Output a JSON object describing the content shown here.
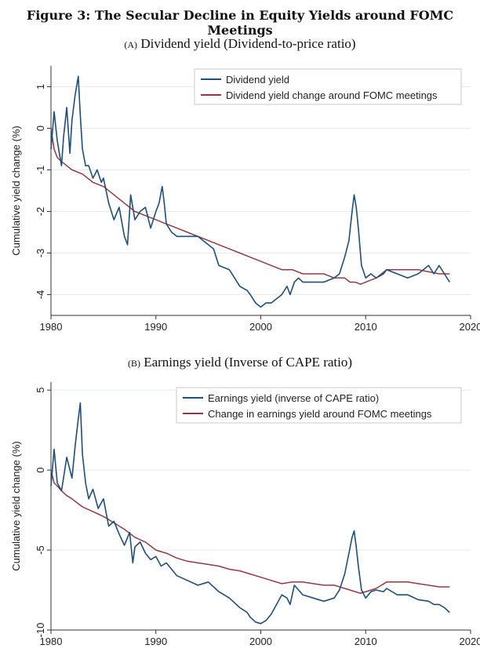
{
  "figure_title": "Figure 3: The Secular Decline in Equity Yields around FOMC Meetings",
  "colors": {
    "blue": "#1f4e79",
    "red": "#943a43",
    "grid": "#e6eaed",
    "axis": "#333333"
  },
  "chart_data": [
    {
      "type": "line",
      "panel_tag": "(A)",
      "title": "Dividend yield (Dividend-to-price ratio)",
      "xlabel": "",
      "ylabel": "Cumulative yield change (%)",
      "xlim": [
        1980,
        2020
      ],
      "ylim": [
        -4.5,
        1.5
      ],
      "xticks": [
        1980,
        1990,
        2000,
        2010,
        2020
      ],
      "yticks": [
        1,
        0,
        -1,
        -2,
        -3,
        -4
      ],
      "legend_position": "top-right",
      "series": [
        {
          "name": "Dividend yield",
          "color": "blue",
          "x": [
            1980.0,
            1980.3,
            1980.6,
            1981.0,
            1981.2,
            1981.5,
            1981.8,
            1982.0,
            1982.3,
            1982.6,
            1982.8,
            1983.0,
            1983.3,
            1983.6,
            1984.0,
            1984.4,
            1984.8,
            1985.0,
            1985.5,
            1986.0,
            1986.5,
            1987.0,
            1987.3,
            1987.6,
            1987.8,
            1988.0,
            1988.5,
            1989.0,
            1989.5,
            1990.0,
            1990.3,
            1990.6,
            1990.8,
            1991.0,
            1991.5,
            1992.0,
            1993.0,
            1994.0,
            1995.0,
            1995.5,
            1996.0,
            1997.0,
            1998.0,
            1998.7,
            1999.0,
            1999.5,
            2000.0,
            2000.5,
            2001.0,
            2001.5,
            2002.0,
            2002.5,
            2002.8,
            2003.2,
            2003.6,
            2004.0,
            2005.0,
            2006.0,
            2007.0,
            2007.5,
            2008.0,
            2008.4,
            2008.7,
            2008.9,
            2009.1,
            2009.3,
            2009.6,
            2010.0,
            2010.5,
            2011.0,
            2011.7,
            2012.0,
            2013.0,
            2014.0,
            2015.0,
            2016.0,
            2016.5,
            2017.0,
            2017.5,
            2018.0
          ],
          "values": [
            -0.5,
            0.4,
            -0.3,
            -0.9,
            -0.2,
            0.5,
            -0.6,
            0.2,
            0.8,
            1.25,
            0.3,
            -0.5,
            -0.9,
            -0.9,
            -1.2,
            -1.0,
            -1.3,
            -1.2,
            -1.8,
            -2.2,
            -1.9,
            -2.6,
            -2.8,
            -1.6,
            -1.9,
            -2.2,
            -2.0,
            -1.9,
            -2.4,
            -2.0,
            -1.8,
            -1.4,
            -1.8,
            -2.3,
            -2.5,
            -2.6,
            -2.6,
            -2.6,
            -2.8,
            -2.9,
            -3.3,
            -3.4,
            -3.8,
            -3.9,
            -4.0,
            -4.2,
            -4.3,
            -4.2,
            -4.2,
            -4.1,
            -4.0,
            -3.8,
            -4.0,
            -3.7,
            -3.6,
            -3.7,
            -3.7,
            -3.7,
            -3.6,
            -3.5,
            -3.1,
            -2.7,
            -2.0,
            -1.6,
            -1.9,
            -2.4,
            -3.3,
            -3.6,
            -3.5,
            -3.6,
            -3.5,
            -3.4,
            -3.5,
            -3.6,
            -3.5,
            -3.3,
            -3.5,
            -3.3,
            -3.5,
            -3.7
          ]
        },
        {
          "name": "Dividend yield change around FOMC meetings",
          "color": "red",
          "x": [
            1980.0,
            1980.3,
            1980.6,
            1981.0,
            1981.5,
            1982.0,
            1983.0,
            1984.0,
            1985.0,
            1986.0,
            1987.0,
            1988.0,
            1989.0,
            1990.0,
            1991.0,
            1992.0,
            1993.0,
            1994.0,
            1995.0,
            1996.0,
            1997.0,
            1998.0,
            1999.0,
            2000.0,
            2001.0,
            2002.0,
            2003.0,
            2004.0,
            2005.0,
            2006.0,
            2007.0,
            2008.0,
            2008.5,
            2009.0,
            2009.5,
            2010.0,
            2011.0,
            2011.5,
            2012.0,
            2013.0,
            2014.0,
            2015.0,
            2016.0,
            2017.0,
            2018.0
          ],
          "values": [
            0.0,
            -0.5,
            -0.7,
            -0.8,
            -0.9,
            -1.0,
            -1.1,
            -1.3,
            -1.4,
            -1.6,
            -1.8,
            -2.0,
            -2.1,
            -2.2,
            -2.3,
            -2.4,
            -2.5,
            -2.6,
            -2.7,
            -2.8,
            -2.9,
            -3.0,
            -3.1,
            -3.2,
            -3.3,
            -3.4,
            -3.4,
            -3.5,
            -3.5,
            -3.5,
            -3.6,
            -3.6,
            -3.7,
            -3.7,
            -3.75,
            -3.7,
            -3.6,
            -3.5,
            -3.4,
            -3.4,
            -3.4,
            -3.4,
            -3.45,
            -3.5,
            -3.5
          ]
        }
      ]
    },
    {
      "type": "line",
      "panel_tag": "(B)",
      "title": "Earnings yield (Inverse of CAPE ratio)",
      "xlabel": "",
      "ylabel": "Cumulative yield change (%)",
      "xlim": [
        1980,
        2020
      ],
      "ylim": [
        -10,
        5.5
      ],
      "xticks": [
        1980,
        1990,
        2000,
        2010,
        2020
      ],
      "yticks": [
        5,
        0,
        -5,
        -10
      ],
      "legend_position": "top-right",
      "series": [
        {
          "name": "Earnings yield (inverse of CAPE ratio)",
          "color": "blue",
          "x": [
            1980.0,
            1980.3,
            1980.6,
            1981.0,
            1981.5,
            1982.0,
            1982.3,
            1982.6,
            1982.8,
            1983.0,
            1983.3,
            1983.6,
            1984.0,
            1984.5,
            1985.0,
            1985.5,
            1986.0,
            1986.5,
            1987.0,
            1987.5,
            1987.8,
            1988.0,
            1988.5,
            1989.0,
            1989.5,
            1990.0,
            1990.5,
            1991.0,
            1992.0,
            1993.0,
            1994.0,
            1995.0,
            1996.0,
            1997.0,
            1998.0,
            1998.7,
            1999.0,
            1999.5,
            2000.0,
            2000.5,
            2001.0,
            2001.5,
            2002.0,
            2002.5,
            2002.8,
            2003.2,
            2004.0,
            2005.0,
            2006.0,
            2007.0,
            2007.5,
            2008.0,
            2008.4,
            2008.7,
            2008.9,
            2009.1,
            2009.3,
            2009.6,
            2010.0,
            2010.5,
            2011.0,
            2011.7,
            2012.0,
            2013.0,
            2014.0,
            2015.0,
            2016.0,
            2016.5,
            2017.0,
            2017.5,
            2018.0
          ],
          "values": [
            -1.0,
            1.3,
            -0.8,
            -1.3,
            0.8,
            -0.5,
            1.5,
            3.2,
            4.2,
            1.0,
            -0.8,
            -1.8,
            -1.2,
            -2.4,
            -1.8,
            -3.5,
            -3.2,
            -4.0,
            -4.7,
            -3.9,
            -5.8,
            -4.8,
            -4.5,
            -5.2,
            -5.6,
            -5.4,
            -6.0,
            -5.8,
            -6.6,
            -6.9,
            -7.2,
            -7.0,
            -7.6,
            -8.0,
            -8.6,
            -8.9,
            -9.2,
            -9.5,
            -9.6,
            -9.4,
            -9.0,
            -8.4,
            -7.8,
            -8.0,
            -8.4,
            -7.2,
            -7.8,
            -8.0,
            -8.2,
            -8.0,
            -7.5,
            -6.5,
            -5.2,
            -4.2,
            -3.8,
            -4.8,
            -6.0,
            -7.5,
            -8.0,
            -7.6,
            -7.5,
            -7.6,
            -7.4,
            -7.8,
            -7.8,
            -8.1,
            -8.2,
            -8.4,
            -8.4,
            -8.6,
            -8.9
          ]
        },
        {
          "name": "Change in earnings yield around FOMC meetings",
          "color": "red",
          "x": [
            1980.0,
            1980.3,
            1980.6,
            1981.0,
            1981.5,
            1982.0,
            1983.0,
            1984.0,
            1985.0,
            1986.0,
            1987.0,
            1988.0,
            1989.0,
            1990.0,
            1991.0,
            1992.0,
            1993.0,
            1994.0,
            1995.0,
            1996.0,
            1997.0,
            1998.0,
            1999.0,
            2000.0,
            2001.0,
            2002.0,
            2003.0,
            2004.0,
            2005.0,
            2006.0,
            2007.0,
            2008.0,
            2008.5,
            2009.0,
            2009.5,
            2010.0,
            2011.0,
            2011.5,
            2012.0,
            2013.0,
            2014.0,
            2015.0,
            2016.0,
            2017.0,
            2018.0
          ],
          "values": [
            0.0,
            -0.8,
            -1.0,
            -1.3,
            -1.6,
            -1.8,
            -2.3,
            -2.6,
            -2.9,
            -3.3,
            -3.7,
            -4.2,
            -4.5,
            -5.0,
            -5.2,
            -5.5,
            -5.7,
            -5.8,
            -5.9,
            -6.0,
            -6.2,
            -6.3,
            -6.5,
            -6.7,
            -6.9,
            -7.1,
            -7.0,
            -7.0,
            -7.1,
            -7.2,
            -7.2,
            -7.4,
            -7.5,
            -7.6,
            -7.7,
            -7.6,
            -7.4,
            -7.2,
            -7.0,
            -7.0,
            -7.0,
            -7.1,
            -7.2,
            -7.3,
            -7.3
          ]
        }
      ]
    }
  ]
}
